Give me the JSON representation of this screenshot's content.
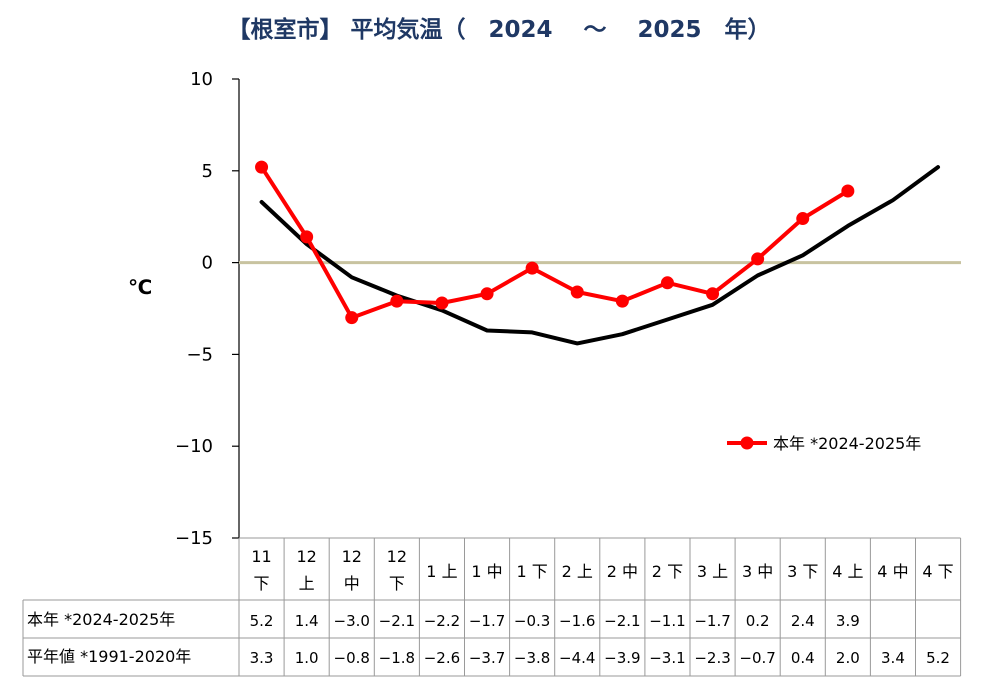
{
  "chart_data": {
    "type": "line",
    "title": "【根室市】 平均気温（　2024　 ～　 2025　年）",
    "ylabel": "℃",
    "ylim": [
      -15,
      10
    ],
    "yticks": [
      10,
      5,
      0,
      -5,
      -10,
      -15
    ],
    "ytick_labels": [
      "10",
      "5",
      "0",
      "−5",
      "−10",
      "−15"
    ],
    "zero_line": 0,
    "categories": [
      [
        "11",
        "下"
      ],
      [
        "12",
        "上"
      ],
      [
        "12",
        "中"
      ],
      [
        "12",
        "下"
      ],
      [
        "1 上"
      ],
      [
        "1 中"
      ],
      [
        "1 下"
      ],
      [
        "2 上"
      ],
      [
        "2 中"
      ],
      [
        "2 下"
      ],
      [
        "3 上"
      ],
      [
        "3 中"
      ],
      [
        "3 下"
      ],
      [
        "4 上"
      ],
      [
        "4 中"
      ],
      [
        "4 下"
      ]
    ],
    "series": [
      {
        "name": "本年 *2024-2025年",
        "color": "#ff0000",
        "markers": true,
        "values": [
          5.2,
          1.4,
          -3.0,
          -2.1,
          -2.2,
          -1.7,
          -0.3,
          -1.6,
          -2.1,
          -1.1,
          -1.7,
          0.2,
          2.4,
          3.9,
          null,
          null
        ],
        "labels": [
          "5.2",
          "1.4",
          "−3.0",
          "−2.1",
          "−2.2",
          "−1.7",
          "−0.3",
          "−1.6",
          "−2.1",
          "−1.1",
          "−1.7",
          "0.2",
          "2.4",
          "3.9",
          "",
          ""
        ]
      },
      {
        "name": "平年値 *1991-2020年",
        "color": "#000000",
        "markers": false,
        "values": [
          3.3,
          1.0,
          -0.8,
          -1.8,
          -2.6,
          -3.7,
          -3.8,
          -4.4,
          -3.9,
          -3.1,
          -2.3,
          -0.7,
          0.4,
          2.0,
          3.4,
          5.2
        ],
        "labels": [
          "3.3",
          "1.0",
          "−0.8",
          "−1.8",
          "−2.6",
          "−3.7",
          "−3.8",
          "−4.4",
          "−3.9",
          "−3.1",
          "−2.3",
          "−0.7",
          "0.4",
          "2.0",
          "3.4",
          "5.2"
        ]
      }
    ],
    "legend": {
      "label": "本年 *2024-2025年",
      "placement": "right"
    },
    "zero_line_color": "#c8c3a0"
  }
}
